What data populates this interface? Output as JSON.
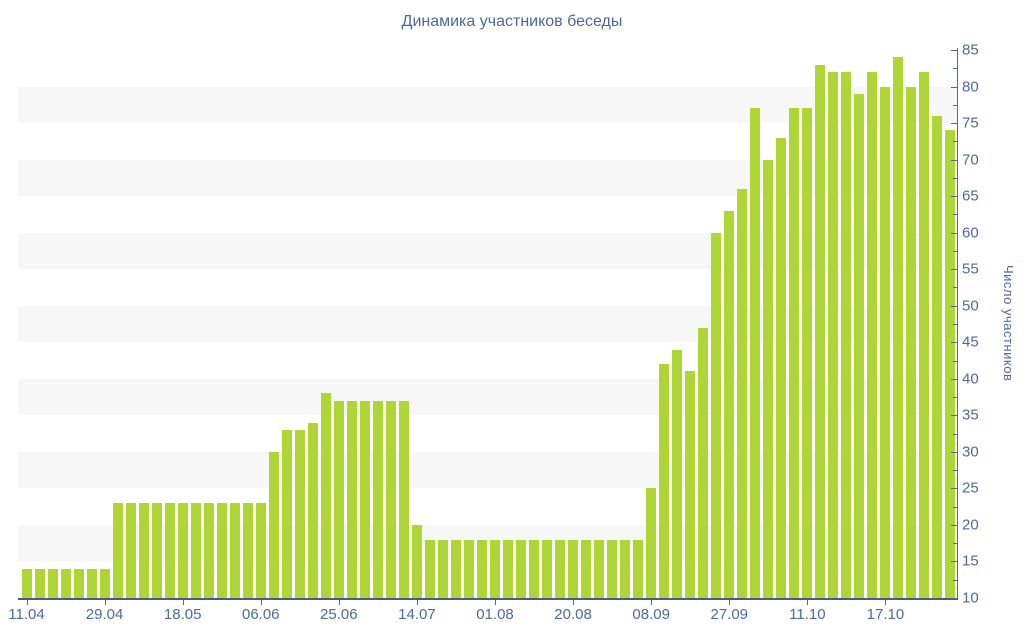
{
  "chart_data": {
    "type": "bar",
    "title": "Динамика участников беседы",
    "ylabel": "Число участников",
    "xlabel": "",
    "ylim": [
      10,
      85
    ],
    "y_major_step": 5,
    "y_minor_step": 2.5,
    "grid_bands": "alternating horizontal gray bands every 5 units (15-20, 25-30, 35-40, 45-50, 55-60, 65-70, 75-80)",
    "legend": "none",
    "values": [
      14,
      14,
      14,
      14,
      14,
      14,
      14,
      23,
      23,
      23,
      23,
      23,
      23,
      23,
      23,
      23,
      23,
      23,
      23,
      30,
      33,
      33,
      34,
      38,
      37,
      37,
      37,
      37,
      37,
      37,
      20,
      18,
      18,
      18,
      18,
      18,
      18,
      18,
      18,
      18,
      18,
      18,
      18,
      18,
      18,
      18,
      18,
      18,
      25,
      42,
      44,
      41,
      47,
      60,
      63,
      66,
      77,
      70,
      73,
      77,
      77,
      83,
      82,
      82,
      79,
      82,
      80,
      84,
      80,
      82,
      76,
      74
    ],
    "x_ticks": [
      {
        "index": 0,
        "label": "11.04"
      },
      {
        "index": 6,
        "label": "29.04"
      },
      {
        "index": 12,
        "label": "18.05"
      },
      {
        "index": 18,
        "label": "06.06"
      },
      {
        "index": 24,
        "label": "25.06"
      },
      {
        "index": 30,
        "label": "14.07"
      },
      {
        "index": 36,
        "label": "01.08"
      },
      {
        "index": 42,
        "label": "20.08"
      },
      {
        "index": 48,
        "label": "08.09"
      },
      {
        "index": 54,
        "label": "27.09"
      },
      {
        "index": 60,
        "label": "11.10"
      },
      {
        "index": 66,
        "label": "17.10"
      }
    ],
    "y_tick_labels": [
      "10",
      "15",
      "20",
      "25",
      "30",
      "35",
      "40",
      "45",
      "50",
      "55",
      "60",
      "65",
      "70",
      "75",
      "80",
      "85"
    ],
    "colors": {
      "bar": "#aed636",
      "band": "#f7f7f7",
      "axis": "#4d6a9b",
      "baseline": "#46598c",
      "text": "#4a6b9e",
      "title_text": "#4d6a96",
      "background": "#ffffff"
    }
  }
}
